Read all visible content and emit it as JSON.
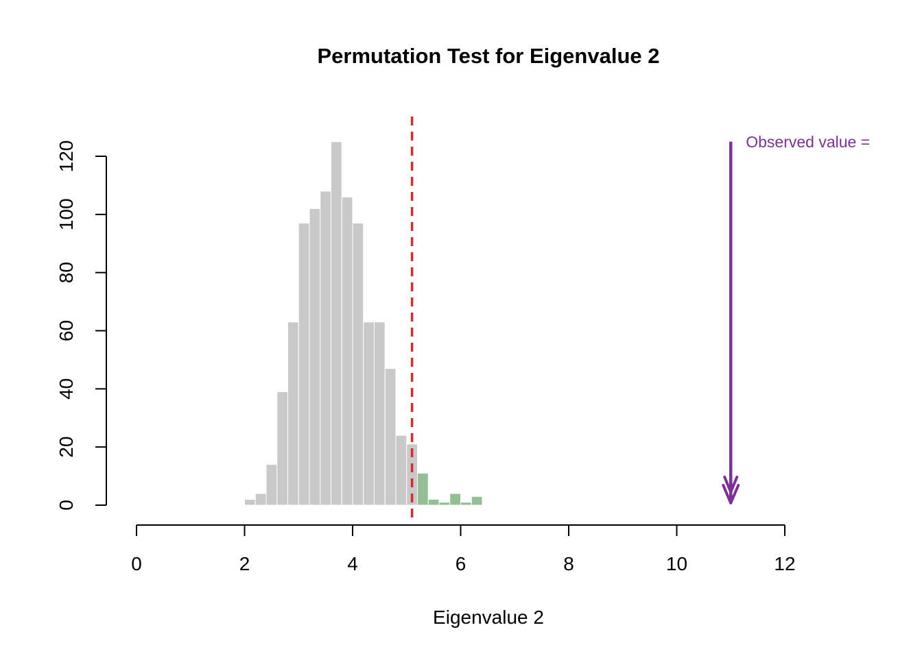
{
  "chart_data": {
    "type": "bar",
    "subtype": "histogram",
    "title": "Permutation Test for Eigenvalue 2",
    "xlabel": "Eigenvalue 2",
    "ylabel": "",
    "xlim": [
      0,
      12
    ],
    "ylim": [
      0,
      120
    ],
    "x_ticks": [
      0,
      2,
      4,
      6,
      8,
      10,
      12
    ],
    "y_ticks": [
      0,
      20,
      40,
      60,
      80,
      100,
      120
    ],
    "grid": false,
    "bin_width": 0.2,
    "bins": [
      {
        "x": 2.0,
        "count": 2,
        "group": "null"
      },
      {
        "x": 2.2,
        "count": 4,
        "group": "null"
      },
      {
        "x": 2.4,
        "count": 14,
        "group": "null"
      },
      {
        "x": 2.6,
        "count": 39,
        "group": "null"
      },
      {
        "x": 2.8,
        "count": 63,
        "group": "null"
      },
      {
        "x": 3.0,
        "count": 97,
        "group": "null"
      },
      {
        "x": 3.2,
        "count": 102,
        "group": "null"
      },
      {
        "x": 3.4,
        "count": 108,
        "group": "null"
      },
      {
        "x": 3.6,
        "count": 125,
        "group": "null"
      },
      {
        "x": 3.8,
        "count": 106,
        "group": "null"
      },
      {
        "x": 4.0,
        "count": 97,
        "group": "null"
      },
      {
        "x": 4.2,
        "count": 63,
        "group": "null"
      },
      {
        "x": 4.4,
        "count": 63,
        "group": "null"
      },
      {
        "x": 4.6,
        "count": 47,
        "group": "null"
      },
      {
        "x": 4.8,
        "count": 24,
        "group": "null"
      },
      {
        "x": 5.0,
        "count": 21,
        "group": "null"
      },
      {
        "x": 5.2,
        "count": 11,
        "group": "tail"
      },
      {
        "x": 5.4,
        "count": 2,
        "group": "tail"
      },
      {
        "x": 5.6,
        "count": 1,
        "group": "tail"
      },
      {
        "x": 5.8,
        "count": 4,
        "group": "tail"
      },
      {
        "x": 6.0,
        "count": 1,
        "group": "tail"
      },
      {
        "x": 6.2,
        "count": 3,
        "group": "tail"
      }
    ],
    "threshold_line": {
      "x": 5.1,
      "style": "dashed"
    },
    "arrow": {
      "x": 11,
      "y_start": 125,
      "y_end": 0
    },
    "annotation": {
      "label": "Observed value ="
    },
    "colors": {
      "null": "#c9c9c9",
      "tail": "#94bf94",
      "threshold": "#d42b2b",
      "arrow": "#7b3294",
      "axis": "#000000",
      "text": "#000000"
    },
    "legend": null
  }
}
